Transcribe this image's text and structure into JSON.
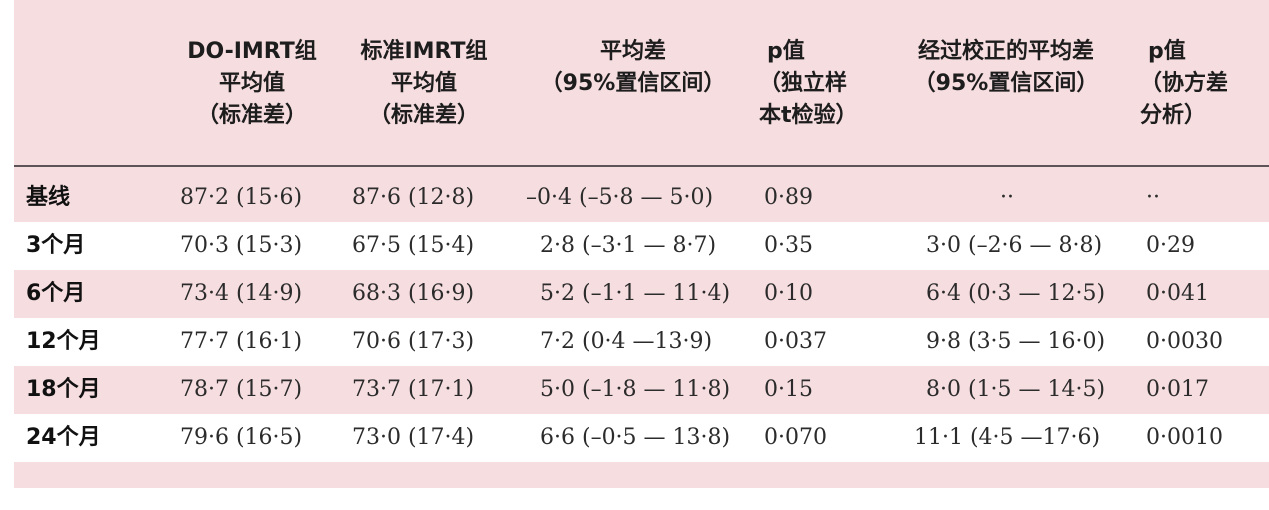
{
  "headers": [
    {
      "lines": [
        "DO-IMRT组",
        "平均值",
        "（标准差）"
      ]
    },
    {
      "lines": [
        "标准IMRT组",
        "平均值",
        "（标准差）"
      ]
    },
    {
      "lines": [
        "平均差",
        "（95%置信区间）"
      ]
    },
    {
      "lines": [
        "p值",
        "（独立样",
        "本t检验）"
      ]
    },
    {
      "lines": [
        "经过校正的平均差",
        "（95%置信区间）"
      ]
    },
    {
      "lines": [
        "p值",
        "（协方差",
        "分析）"
      ]
    }
  ],
  "rows": [
    {
      "label": "基线",
      "do_imrt": "87·2 (15·6)",
      "std_imrt": "87·6 (12·8)",
      "mean_diff": "–0·4 (–5·8 — 5·0)",
      "p_ttest": "0·89",
      "adj_diff": "··",
      "p_ancova": "··"
    },
    {
      "label": "3个月",
      "do_imrt": "70·3 (15·3)",
      "std_imrt": "67·5 (15·4)",
      "mean_diff": "2·8 (–3·1 — 8·7)",
      "p_ttest": "0·35",
      "adj_diff": "3·0 (–2·6 — 8·8)",
      "p_ancova": "0·29"
    },
    {
      "label": "6个月",
      "do_imrt": "73·4 (14·9)",
      "std_imrt": "68·3 (16·9)",
      "mean_diff": "5·2 (–1·1 — 11·4)",
      "p_ttest": "0·10",
      "adj_diff": "6·4 (0·3 — 12·5)",
      "p_ancova": "0·041"
    },
    {
      "label": "12个月",
      "do_imrt": "77·7 (16·1)",
      "std_imrt": "70·6 (17·3)",
      "mean_diff": "7·2 (0·4 —13·9)",
      "p_ttest": "0·037",
      "adj_diff": "9·8 (3·5 — 16·0)",
      "p_ancova": "0·0030"
    },
    {
      "label": "18个月",
      "do_imrt": "78·7 (15·7)",
      "std_imrt": "73·7 (17·1)",
      "mean_diff": "5·0 (–1·8 — 11·8)",
      "p_ttest": "0·15",
      "adj_diff": "8·0 (1·5 — 14·5)",
      "p_ancova": "0·017"
    },
    {
      "label": "24个月",
      "do_imrt": "79·6 (16·5)",
      "std_imrt": "73·0 (17·4)",
      "mean_diff": "6·6 (–0·5 — 13·8)",
      "p_ttest": "0·070",
      "adj_diff": "11·1 (4·5 —17·6)",
      "p_ancova": "0·0010"
    }
  ],
  "colors": {
    "panel_bg": "#f6dde0",
    "white_row": "#ffffff",
    "rule": "#5c5457"
  }
}
